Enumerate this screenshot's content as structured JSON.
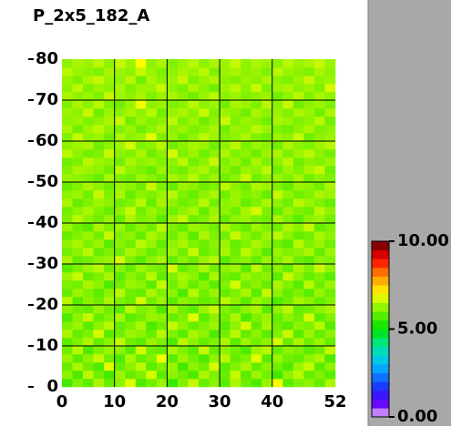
{
  "chart_data": {
    "type": "heatmap",
    "title": "P_2x5_182_A",
    "xlim": [
      0,
      52
    ],
    "ylim": [
      0,
      80
    ],
    "xticks": [
      0,
      10,
      20,
      30,
      40,
      52
    ],
    "yticks": [
      0,
      10,
      20,
      30,
      40,
      50,
      60,
      70,
      80
    ],
    "grid": true,
    "zlim": [
      0,
      10
    ],
    "zticks": [
      {
        "value": 0,
        "label": "0.00"
      },
      {
        "value": 5,
        "label": "5.00"
      },
      {
        "value": 10,
        "label": "10.00"
      }
    ],
    "colormap": [
      {
        "value": 0,
        "color": "#ffffff"
      },
      {
        "value": 0.5,
        "color": "#8000ff"
      },
      {
        "value": 1.5,
        "color": "#2020ff"
      },
      {
        "value": 3,
        "color": "#00c0ff"
      },
      {
        "value": 4,
        "color": "#00e8a0"
      },
      {
        "value": 5,
        "color": "#00e000"
      },
      {
        "value": 6,
        "color": "#70f000"
      },
      {
        "value": 7,
        "color": "#ffff00"
      },
      {
        "value": 8,
        "color": "#ff9000"
      },
      {
        "value": 9,
        "color": "#ff0000"
      },
      {
        "value": 10,
        "color": "#600000"
      }
    ],
    "z": [
      [
        5.6,
        6.1,
        5.8,
        6.4,
        5.9,
        6.2,
        6.8,
        5.7,
        6.0,
        6.3,
        5.5,
        6.1,
        6.6,
        5.9,
        6.2,
        5.8,
        6.4,
        6.0,
        5.7,
        6.3,
        6.9,
        5.8,
        6.1,
        6.2,
        5.9,
        6.4
      ],
      [
        6.2,
        5.7,
        6.5,
        6.0,
        5.6,
        6.3,
        5.9,
        6.1,
        6.7,
        5.8,
        6.2,
        6.0,
        5.7,
        6.4,
        6.1,
        5.9,
        6.6,
        5.8,
        6.3,
        6.0,
        5.6,
        6.2,
        6.5,
        5.9,
        6.1,
        5.8
      ],
      [
        5.9,
        6.4,
        6.0,
        5.7,
        6.8,
        5.9,
        6.2,
        6.5,
        5.8,
        6.1,
        6.3,
        5.6,
        6.2,
        6.0,
        6.7,
        5.8,
        6.1,
        6.4,
        5.9,
        6.2,
        6.0,
        5.7,
        6.3,
        6.6,
        5.8,
        6.2
      ],
      [
        6.3,
        5.8,
        6.2,
        6.6,
        6.0,
        5.7,
        6.4,
        5.9,
        6.1,
        6.9,
        5.8,
        6.3,
        6.0,
        5.7,
        6.2,
        6.5,
        5.9,
        6.1,
        6.8,
        5.8,
        6.3,
        6.0,
        5.9,
        6.2,
        6.4,
        5.7
      ],
      [
        6.0,
        6.5,
        5.7,
        6.1,
        6.3,
        6.2,
        5.8,
        6.7,
        6.0,
        5.9,
        6.4,
        6.1,
        5.8,
        6.6,
        5.9,
        6.2,
        6.0,
        5.7,
        6.3,
        6.5,
        5.9,
        6.2,
        6.1,
        5.8,
        6.0,
        6.6
      ],
      [
        5.8,
        6.1,
        6.4,
        5.9,
        6.2,
        6.6,
        6.0,
        5.8,
        6.3,
        6.1,
        5.7,
        6.5,
        6.2,
        5.9,
        6.1,
        6.4,
        5.8,
        6.3,
        6.0,
        6.2,
        6.7,
        5.9,
        6.4,
        6.0,
        6.3,
        5.9
      ],
      [
        6.4,
        5.9,
        6.1,
        6.7,
        5.8,
        6.0,
        6.3,
        6.2,
        5.9,
        6.5,
        6.1,
        5.8,
        6.4,
        6.2,
        5.7,
        6.0,
        6.5,
        5.9,
        6.2,
        5.8,
        6.1,
        6.6,
        5.8,
        6.3,
        5.9,
        6.2
      ],
      [
        6.1,
        6.3,
        5.8,
        6.2,
        6.5,
        5.9,
        6.1,
        6.4,
        5.7,
        6.0,
        6.6,
        6.2,
        5.9,
        6.1,
        6.3,
        5.8,
        6.2,
        6.7,
        5.9,
        6.4,
        6.0,
        5.8,
        6.2,
        6.1,
        6.5,
        5.8
      ],
      [
        5.7,
        6.2,
        6.6,
        5.9,
        6.1,
        6.4,
        5.8,
        6.0,
        6.3,
        6.2,
        5.9,
        6.1,
        6.8,
        5.8,
        6.2,
        6.0,
        6.4,
        5.7,
        6.1,
        6.3,
        5.9,
        6.2,
        6.0,
        6.7,
        5.8,
        6.1
      ],
      [
        6.2,
        6.0,
        5.9,
        6.3,
        6.0,
        5.8,
        6.5,
        6.1,
        6.2,
        5.7,
        6.4,
        6.0,
        5.8,
        6.3,
        6.6,
        6.1,
        5.9,
        6.2,
        6.4,
        5.8,
        6.2,
        6.5,
        5.9,
        6.0,
        6.2,
        6.4
      ],
      [
        6.5,
        5.8,
        6.2,
        6.0,
        6.4,
        6.1,
        5.9,
        6.7,
        6.0,
        6.3,
        5.8,
        6.2,
        6.1,
        5.9,
        6.0,
        6.5,
        6.2,
        5.8,
        6.3,
        6.1,
        5.7,
        6.0,
        6.4,
        6.2,
        5.9,
        6.1
      ],
      [
        5.9,
        6.3,
        6.1,
        5.8,
        6.2,
        6.5,
        6.0,
        5.9,
        6.4,
        6.1,
        6.2,
        5.7,
        6.5,
        6.0,
        6.3,
        5.9,
        6.1,
        6.4,
        5.8,
        6.6,
        6.2,
        5.9,
        6.1,
        5.8,
        6.3,
        6.0
      ],
      [
        6.1,
        6.0,
        6.4,
        6.2,
        5.7,
        6.0,
        6.3,
        6.2,
        5.8,
        6.6,
        6.0,
        6.3,
        5.9,
        6.2,
        5.8,
        6.1,
        6.7,
        6.0,
        6.2,
        5.9,
        6.4,
        6.1,
        5.8,
        6.5,
        6.0,
        6.3
      ],
      [
        6.3,
        6.6,
        5.9,
        6.1,
        6.4,
        5.8,
        6.2,
        6.0,
        6.5,
        5.9,
        6.1,
        6.4,
        6.2,
        5.7,
        6.4,
        6.0,
        5.9,
        6.3,
        6.1,
        6.2,
        5.8,
        6.6,
        6.2,
        5.9,
        6.1,
        5.8
      ],
      [
        5.8,
        6.1,
        6.3,
        6.5,
        6.0,
        6.2,
        5.9,
        6.3,
        6.1,
        6.0,
        6.7,
        5.9,
        6.1,
        6.4,
        6.0,
        6.2,
        6.3,
        5.8,
        6.5,
        6.0,
        6.2,
        5.9,
        6.4,
        6.1,
        6.6,
        6.2
      ],
      [
        6.4,
        5.9,
        6.0,
        6.2,
        6.3,
        6.7,
        6.1,
        5.8,
        6.2,
        6.4,
        5.9,
        6.2,
        6.0,
        6.3,
        6.5,
        5.8,
        6.1,
        6.2,
        5.9,
        6.3,
        6.1,
        6.4,
        6.0,
        5.8,
        6.2,
        6.1
      ],
      [
        6.0,
        6.2,
        6.5,
        5.9,
        6.1,
        6.0,
        6.4,
        6.2,
        5.9,
        6.1,
        6.3,
        6.0,
        6.6,
        5.9,
        6.1,
        6.4,
        6.0,
        6.5,
        6.2,
        5.8,
        6.3,
        6.1,
        6.2,
        6.4,
        5.9,
        6.3
      ],
      [
        6.2,
        6.4,
        6.1,
        6.3,
        5.8,
        6.2,
        6.0,
        6.5,
        6.3,
        5.9,
        6.2,
        6.4,
        6.1,
        6.0,
        6.2,
        6.3,
        5.9,
        6.1,
        6.4,
        6.2,
        6.0,
        5.8,
        6.5,
        6.1,
        6.3,
        6.0
      ],
      [
        5.9,
        6.1,
        6.3,
        6.0,
        6.6,
        6.1,
        6.2,
        5.9,
        6.4,
        6.2,
        6.0,
        6.3,
        5.8,
        6.4,
        6.1,
        6.0,
        6.6,
        6.2,
        6.0,
        6.3,
        6.5,
        6.2,
        5.9,
        6.0,
        6.4,
        6.2
      ],
      [
        6.3,
        6.0,
        5.8,
        6.4,
        6.1,
        6.3,
        5.9,
        6.2,
        6.0,
        6.5,
        6.1,
        5.9,
        6.3,
        6.2,
        6.0,
        6.4,
        6.1,
        5.9,
        6.3,
        6.1,
        6.0,
        6.4,
        6.2,
        6.6,
        5.9,
        6.1
      ],
      [
        6.1,
        6.5,
        6.2,
        6.0,
        6.3,
        5.9,
        6.4,
        6.1,
        6.2,
        5.8,
        6.3,
        6.6,
        6.0,
        6.1,
        6.4,
        5.9,
        6.2,
        6.3,
        6.1,
        6.0,
        6.4,
        6.1,
        5.8,
        6.2,
        6.3,
        6.0
      ],
      [
        6.0,
        6.2,
        6.4,
        6.1,
        5.9,
        6.2,
        6.6,
        6.0,
        6.3,
        6.1,
        6.0,
        6.2,
        6.4,
        5.9,
        6.3,
        6.2,
        6.0,
        6.4,
        6.7,
        6.1,
        5.9,
        6.3,
        6.1,
        6.0,
        6.5,
        6.2
      ],
      [
        6.4,
        5.9,
        6.1,
        6.3,
        6.2,
        6.0,
        6.1,
        6.5,
        5.9,
        6.4,
        6.2,
        6.0,
        6.1,
        6.5,
        6.0,
        6.2,
        6.3,
        5.9,
        6.1,
        6.4,
        6.2,
        6.0,
        6.5,
        6.3,
        6.1,
        5.9
      ],
      [
        6.2,
        6.3,
        6.0,
        6.6,
        6.1,
        6.4,
        5.9,
        6.2,
        6.1,
        6.3,
        6.5,
        6.1,
        5.9,
        6.2,
        6.4,
        6.0,
        6.3,
        6.1,
        6.2,
        5.9,
        6.6,
        6.2,
        6.0,
        6.1,
        6.4,
        6.3
      ],
      [
        5.9,
        6.1,
        6.4,
        6.2,
        6.0,
        6.3,
        6.2,
        6.0,
        6.6,
        6.1,
        5.9,
        6.3,
        6.2,
        6.0,
        6.1,
        6.5,
        6.2,
        6.0,
        6.4,
        6.3,
        6.1,
        5.9,
        6.3,
        6.2,
        6.0,
        6.4
      ],
      [
        6.3,
        6.2,
        6.1,
        5.9,
        6.4,
        6.1,
        6.0,
        6.3,
        6.2,
        6.0,
        6.4,
        6.2,
        6.5,
        6.1,
        6.3,
        6.0,
        6.2,
        6.6,
        6.0,
        6.2,
        6.3,
        6.1,
        6.4,
        6.0,
        6.2,
        6.1
      ],
      [
        6.1,
        6.4,
        6.3,
        6.2,
        6.0,
        6.5,
        6.2,
        6.1,
        5.9,
        6.3,
        6.1,
        6.0,
        6.3,
        6.4,
        6.1,
        6.2,
        6.0,
        6.3,
        6.2,
        6.5,
        6.0,
        6.3,
        6.1,
        6.4,
        6.6,
        6.0
      ],
      [
        6.0,
        6.1,
        6.5,
        6.3,
        6.2,
        6.0,
        6.4,
        6.2,
        6.3,
        6.1,
        6.2,
        6.5,
        6.0,
        6.2,
        6.6,
        6.1,
        6.3,
        6.0,
        6.4,
        6.1,
        6.2,
        6.5,
        6.0,
        6.2,
        6.1,
        6.3
      ],
      [
        6.5,
        6.2,
        6.0,
        6.1,
        6.6,
        6.2,
        6.1,
        6.4,
        6.0,
        6.2,
        6.7,
        6.1,
        6.3,
        6.0,
        6.2,
        6.4,
        6.1,
        6.2,
        6.0,
        6.3,
        6.4,
        6.1,
        6.3,
        6.5,
        6.2,
        6.0
      ],
      [
        6.2,
        6.3,
        6.4,
        6.0,
        6.2,
        6.3,
        6.7,
        6.1,
        6.2,
        6.5,
        6.0,
        6.2,
        6.4,
        6.3,
        6.0,
        6.2,
        6.5,
        6.1,
        6.3,
        6.2,
        6.0,
        6.4,
        6.2,
        6.1,
        6.3,
        6.5
      ],
      [
        6.1,
        6.6,
        6.2,
        6.3,
        6.0,
        6.4,
        6.2,
        6.3,
        6.8,
        6.1,
        6.3,
        6.0,
        6.2,
        6.5,
        6.3,
        6.1,
        6.2,
        6.4,
        6.1,
        6.0,
        6.3,
        6.2,
        6.6,
        6.0,
        6.2,
        6.3
      ],
      [
        6.4,
        6.0,
        6.3,
        6.5,
        6.2,
        6.1,
        6.3,
        6.0,
        6.2,
        6.4,
        6.2,
        6.3,
        6.1,
        6.2,
        6.4,
        6.0,
        6.3,
        6.2,
        6.5,
        6.3,
        6.1,
        6.0,
        6.2,
        6.4,
        6.1,
        6.2
      ],
      [
        6.2,
        6.3,
        6.1,
        6.2,
        6.4,
        6.6,
        6.0,
        6.3,
        6.1,
        6.2,
        6.5,
        6.1,
        6.3,
        6.0,
        6.2,
        6.6,
        6.1,
        6.3,
        6.2,
        6.0,
        6.4,
        6.3,
        6.1,
        6.2,
        6.5,
        6.0
      ],
      [
        6.3,
        6.2,
        6.6,
        6.0,
        6.3,
        6.2,
        6.4,
        6.2,
        6.5,
        6.0,
        6.3,
        6.4,
        6.2,
        6.6,
        6.1,
        6.3,
        6.2,
        6.0,
        6.4,
        6.2,
        6.3,
        6.1,
        6.4,
        6.3,
        6.0,
        6.4
      ],
      [
        6.1,
        6.4,
        6.2,
        6.5,
        6.1,
        6.0,
        6.3,
        6.9,
        6.2,
        6.3,
        6.1,
        6.2,
        6.5,
        6.2,
        6.3,
        6.0,
        6.4,
        6.3,
        6.1,
        6.5,
        6.2,
        6.6,
        6.0,
        6.2,
        6.3,
        6.1
      ],
      [
        6.4,
        6.2,
        6.3,
        6.1,
        6.6,
        6.3,
        6.2,
        6.4,
        6.1,
        6.3,
        6.4,
        6.2,
        6.0,
        6.3,
        6.5,
        6.2,
        6.3,
        6.1,
        6.2,
        6.3,
        6.0,
        6.2,
        6.5,
        6.1,
        6.4,
        6.2
      ],
      [
        6.2,
        6.5,
        6.1,
        6.3,
        6.2,
        6.4,
        6.1,
        6.3,
        6.3,
        6.6,
        6.2,
        6.1,
        6.4,
        6.2,
        6.0,
        6.3,
        6.5,
        6.2,
        6.6,
        6.1,
        6.3,
        6.4,
        6.2,
        6.3,
        6.1,
        6.7
      ],
      [
        6.3,
        6.1,
        6.4,
        6.6,
        6.3,
        6.2,
        6.5,
        6.0,
        6.4,
        6.2,
        6.3,
        6.6,
        6.1,
        6.3,
        6.4,
        6.2,
        6.1,
        6.3,
        6.2,
        6.4,
        6.2,
        6.1,
        6.3,
        6.6,
        6.2,
        6.3
      ],
      [
        6.5,
        6.3,
        6.2,
        6.1,
        6.4,
        6.3,
        6.2,
        6.6,
        6.3,
        6.1,
        6.2,
        6.4,
        6.3,
        6.5,
        6.1,
        6.3,
        6.4,
        6.2,
        6.3,
        6.1,
        6.5,
        6.3,
        6.2,
        6.1,
        6.4,
        6.2
      ],
      [
        6.2,
        6.4,
        6.3,
        6.5,
        6.2,
        6.6,
        6.3,
        7.0,
        6.2,
        6.4,
        6.1,
        6.3,
        6.5,
        6.2,
        6.4,
        6.3,
        6.6,
        6.2,
        6.4,
        6.3,
        6.2,
        6.5,
        6.3,
        6.4,
        6.6,
        6.3
      ]
    ]
  }
}
